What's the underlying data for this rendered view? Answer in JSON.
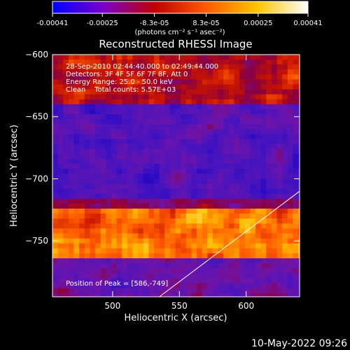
{
  "chart_data": {
    "type": "heatmap",
    "title": "Reconstructed RHESSI Image",
    "xlabel": "Heliocentric X (arcsec)",
    "ylabel": "Heliocentric Y (arcsec)",
    "xlim": [
      455,
      640
    ],
    "ylim": [
      -795,
      -600
    ],
    "x_ticks": [
      "500",
      "550",
      "600"
    ],
    "x_tick_values": [
      500,
      550,
      600
    ],
    "y_ticks": [
      "-600",
      "-650",
      "-700",
      "-750"
    ],
    "y_tick_values": [
      -600,
      -650,
      -700,
      -750
    ],
    "colorbar": {
      "ticks": [
        "-0.00041",
        "-0.00025",
        "-8.3e-05",
        "8.3e-05",
        "0.00025",
        "0.00041"
      ],
      "tick_values": [
        -0.00041,
        -0.00025,
        -8.3e-05,
        8.3e-05,
        0.00025,
        0.00041
      ],
      "range": [
        -0.00041,
        0.00041
      ],
      "units": "(photons cm⁻² s⁻¹ asec⁻²)",
      "colors": [
        "#0000ff",
        "#7a00c8",
        "#c00000",
        "#ff5a00",
        "#ffc400",
        "#ffffff"
      ]
    },
    "annotations": [
      "28-Sep-2010 02:44:40.000 to 02:49:44.000",
      "Detectors: 3F 4F 5F 6F 7F 8F, Att 0",
      "Energy Range: 25.0 - 50.0 keV",
      "Clean    Total counts: 5.57E+03"
    ],
    "peak_text": "Position of Peak = [586,-749]",
    "peak": [
      586,
      -749
    ],
    "limb_line": [
      [
        535,
        -795
      ],
      [
        640,
        -710
      ]
    ]
  },
  "footer": {
    "timestamp": "10-May-2022 09:26"
  }
}
